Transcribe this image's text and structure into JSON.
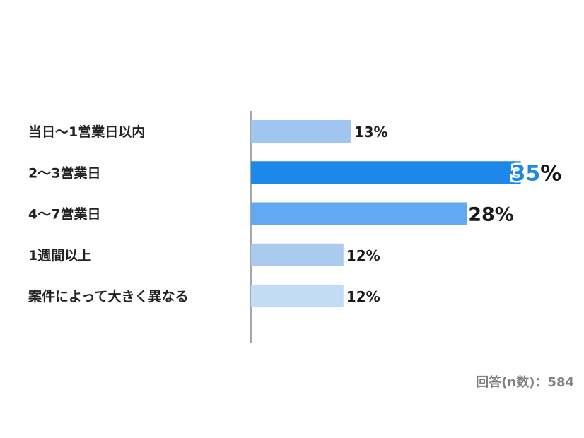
{
  "chart_data": {
    "type": "bar",
    "orientation": "horizontal",
    "categories": [
      "当日〜1営業日以内",
      "2〜3営業日",
      "4〜7営業日",
      "1週間以上",
      "案件によって大きく異なる"
    ],
    "values": [
      13,
      35,
      28,
      12,
      12
    ],
    "value_labels": [
      "13%",
      "35%",
      "28%",
      "12%",
      "12%"
    ],
    "colors": [
      "#9fc5f0",
      "#1e88ea",
      "#62a9f1",
      "#aacbee",
      "#c2dcf6"
    ],
    "highlight_index": 1,
    "highlight_number_color": "#1e88ea",
    "xlim": [
      0,
      40
    ],
    "grid": false,
    "legend": "none",
    "title": "",
    "xlabel": "",
    "ylabel": ""
  },
  "sample_note": "回答(n数)：584"
}
